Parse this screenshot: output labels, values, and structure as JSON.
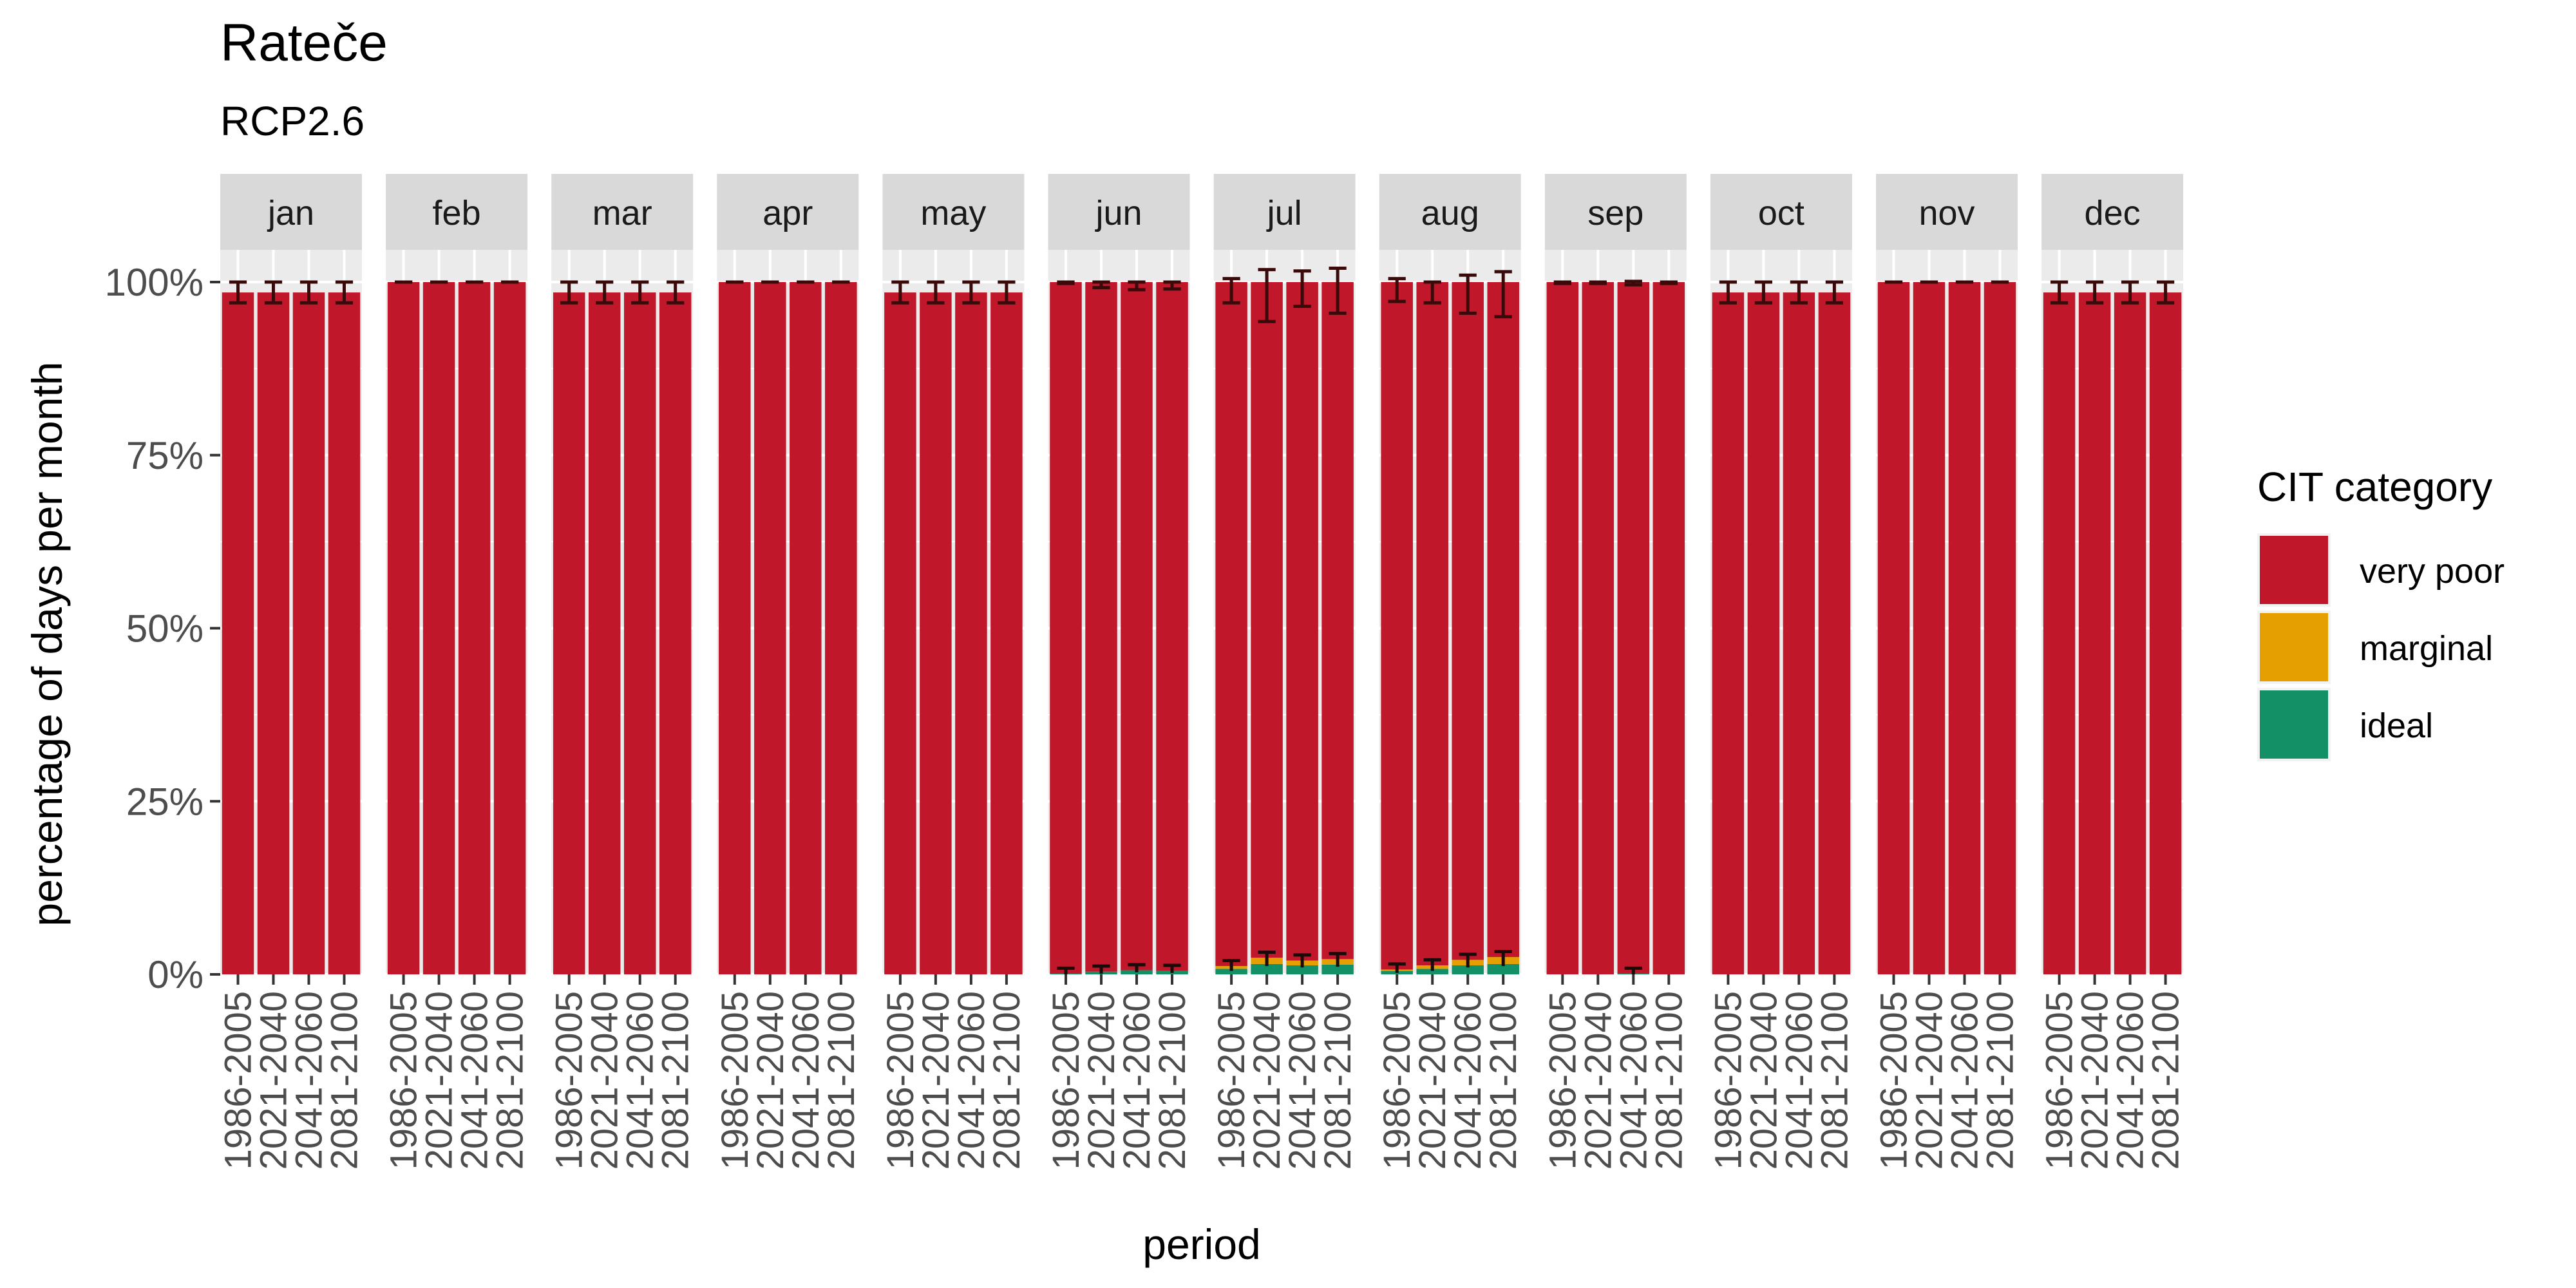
{
  "chart_data": {
    "type": "bar",
    "stacked": true,
    "title": "Rateče",
    "subtitle": "RCP2.6",
    "xlabel": "period",
    "ylabel": "percentage of days per month",
    "ylim": [
      0,
      100
    ],
    "y_ticks": [
      "0%",
      "25%",
      "50%",
      "75%",
      "100%"
    ],
    "y_tick_values": [
      0,
      25,
      50,
      75,
      100
    ],
    "grid": true,
    "legend_position": "right",
    "legend_title": "CIT category",
    "categories": [
      "1986-2005",
      "2021-2040",
      "2041-2060",
      "2081-2100"
    ],
    "series_meta": [
      {
        "name": "very poor",
        "color": "#C0182A"
      },
      {
        "name": "marginal",
        "color": "#E69F00"
      },
      {
        "name": "ideal",
        "color": "#149066"
      }
    ],
    "panels": [
      {
        "month": "jan",
        "bars": [
          {
            "ideal": 0,
            "marginal": 0,
            "very_poor": 98.5,
            "err": [
              97.0,
              100.0
            ]
          },
          {
            "ideal": 0,
            "marginal": 0,
            "very_poor": 98.5,
            "err": [
              97.0,
              100.0
            ]
          },
          {
            "ideal": 0,
            "marginal": 0,
            "very_poor": 98.5,
            "err": [
              97.0,
              100.0
            ]
          },
          {
            "ideal": 0,
            "marginal": 0,
            "very_poor": 98.5,
            "err": [
              97.0,
              100.0
            ]
          }
        ]
      },
      {
        "month": "feb",
        "bars": [
          {
            "ideal": 0,
            "marginal": 0,
            "very_poor": 100,
            "err": [
              100,
              100
            ]
          },
          {
            "ideal": 0,
            "marginal": 0,
            "very_poor": 100,
            "err": [
              100,
              100
            ]
          },
          {
            "ideal": 0,
            "marginal": 0,
            "very_poor": 100,
            "err": [
              100,
              100
            ]
          },
          {
            "ideal": 0,
            "marginal": 0,
            "very_poor": 100,
            "err": [
              100,
              100
            ]
          }
        ]
      },
      {
        "month": "mar",
        "bars": [
          {
            "ideal": 0,
            "marginal": 0,
            "very_poor": 98.5,
            "err": [
              97.0,
              100.0
            ]
          },
          {
            "ideal": 0,
            "marginal": 0,
            "very_poor": 98.5,
            "err": [
              97.0,
              100.0
            ]
          },
          {
            "ideal": 0,
            "marginal": 0,
            "very_poor": 98.5,
            "err": [
              97.0,
              100.0
            ]
          },
          {
            "ideal": 0,
            "marginal": 0,
            "very_poor": 98.5,
            "err": [
              97.0,
              100.0
            ]
          }
        ]
      },
      {
        "month": "apr",
        "bars": [
          {
            "ideal": 0,
            "marginal": 0,
            "very_poor": 100,
            "err": [
              100,
              100
            ]
          },
          {
            "ideal": 0,
            "marginal": 0,
            "very_poor": 100,
            "err": [
              100,
              100
            ]
          },
          {
            "ideal": 0,
            "marginal": 0,
            "very_poor": 100,
            "err": [
              100,
              100
            ]
          },
          {
            "ideal": 0,
            "marginal": 0,
            "very_poor": 100,
            "err": [
              100,
              100
            ]
          }
        ]
      },
      {
        "month": "may",
        "bars": [
          {
            "ideal": 0,
            "marginal": 0,
            "very_poor": 98.5,
            "err": [
              97.0,
              100.0
            ]
          },
          {
            "ideal": 0,
            "marginal": 0,
            "very_poor": 98.5,
            "err": [
              97.0,
              100.0
            ]
          },
          {
            "ideal": 0,
            "marginal": 0,
            "very_poor": 98.5,
            "err": [
              97.0,
              100.0
            ]
          },
          {
            "ideal": 0,
            "marginal": 0,
            "very_poor": 98.5,
            "err": [
              97.0,
              100.0
            ]
          }
        ]
      },
      {
        "month": "jun",
        "bars": [
          {
            "ideal": 0.1,
            "marginal": 0,
            "very_poor": 99.9,
            "err": [
              99.8,
              100.0
            ]
          },
          {
            "ideal": 0.4,
            "marginal": 0,
            "very_poor": 99.6,
            "err": [
              99.2,
              100.0
            ]
          },
          {
            "ideal": 0.6,
            "marginal": 0,
            "very_poor": 99.4,
            "err": [
              98.9,
              100.0
            ]
          },
          {
            "ideal": 0.5,
            "marginal": 0,
            "very_poor": 99.5,
            "err": [
              99.0,
              100.0
            ]
          }
        ]
      },
      {
        "month": "jul",
        "bars": [
          {
            "ideal": 0.8,
            "marginal": 0.4,
            "very_poor": 98.8,
            "err": [
              97.0,
              100.5
            ]
          },
          {
            "ideal": 1.5,
            "marginal": 0.9,
            "very_poor": 97.6,
            "err": [
              94.3,
              101.8
            ]
          },
          {
            "ideal": 1.3,
            "marginal": 0.7,
            "very_poor": 98.0,
            "err": [
              96.5,
              101.6
            ]
          },
          {
            "ideal": 1.4,
            "marginal": 0.8,
            "very_poor": 97.8,
            "err": [
              95.5,
              102.0
            ]
          }
        ]
      },
      {
        "month": "aug",
        "bars": [
          {
            "ideal": 0.5,
            "marginal": 0.2,
            "very_poor": 99.3,
            "err": [
              97.2,
              100.5
            ]
          },
          {
            "ideal": 0.8,
            "marginal": 0.5,
            "very_poor": 98.7,
            "err": [
              97.0,
              100.0
            ]
          },
          {
            "ideal": 1.3,
            "marginal": 0.8,
            "very_poor": 97.9,
            "err": [
              95.5,
              101.0
            ]
          },
          {
            "ideal": 1.5,
            "marginal": 1.0,
            "very_poor": 97.5,
            "err": [
              95.0,
              101.5
            ]
          }
        ]
      },
      {
        "month": "sep",
        "bars": [
          {
            "ideal": 0,
            "marginal": 0,
            "very_poor": 100,
            "err": [
              99.8,
              100.0
            ]
          },
          {
            "ideal": 0,
            "marginal": 0,
            "very_poor": 100,
            "err": [
              99.8,
              100.0
            ]
          },
          {
            "ideal": 0.1,
            "marginal": 0,
            "very_poor": 99.9,
            "err": [
              99.6,
              100.1
            ]
          },
          {
            "ideal": 0,
            "marginal": 0,
            "very_poor": 100,
            "err": [
              99.8,
              100.0
            ]
          }
        ]
      },
      {
        "month": "oct",
        "bars": [
          {
            "ideal": 0,
            "marginal": 0,
            "very_poor": 98.5,
            "err": [
              97.0,
              100.0
            ]
          },
          {
            "ideal": 0,
            "marginal": 0,
            "very_poor": 98.5,
            "err": [
              97.0,
              100.0
            ]
          },
          {
            "ideal": 0,
            "marginal": 0,
            "very_poor": 98.5,
            "err": [
              97.0,
              100.0
            ]
          },
          {
            "ideal": 0,
            "marginal": 0,
            "very_poor": 98.5,
            "err": [
              97.0,
              100.0
            ]
          }
        ]
      },
      {
        "month": "nov",
        "bars": [
          {
            "ideal": 0,
            "marginal": 0,
            "very_poor": 100,
            "err": [
              100,
              100
            ]
          },
          {
            "ideal": 0,
            "marginal": 0,
            "very_poor": 100,
            "err": [
              100,
              100
            ]
          },
          {
            "ideal": 0,
            "marginal": 0,
            "very_poor": 100,
            "err": [
              100,
              100
            ]
          },
          {
            "ideal": 0,
            "marginal": 0,
            "very_poor": 100,
            "err": [
              100,
              100
            ]
          }
        ]
      },
      {
        "month": "dec",
        "bars": [
          {
            "ideal": 0,
            "marginal": 0,
            "very_poor": 98.5,
            "err": [
              97.0,
              100.0
            ]
          },
          {
            "ideal": 0,
            "marginal": 0,
            "very_poor": 98.5,
            "err": [
              97.0,
              100.0
            ]
          },
          {
            "ideal": 0,
            "marginal": 0,
            "very_poor": 98.5,
            "err": [
              97.0,
              100.0
            ]
          },
          {
            "ideal": 0,
            "marginal": 0,
            "very_poor": 98.5,
            "err": [
              97.0,
              100.0
            ]
          }
        ]
      }
    ]
  }
}
